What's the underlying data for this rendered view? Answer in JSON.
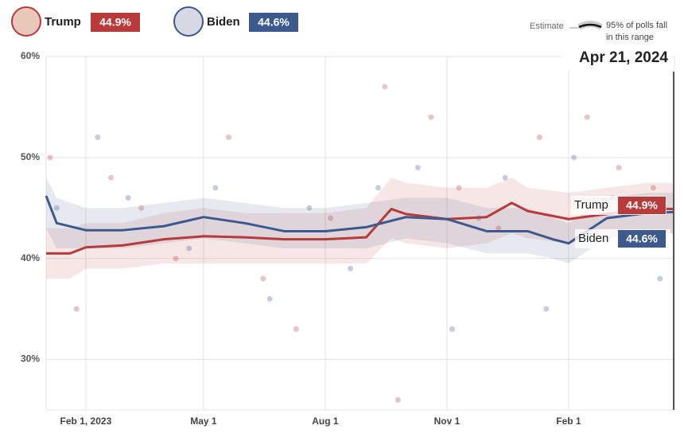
{
  "chart_data": {
    "type": "line",
    "date": "Apr 21, 2024",
    "legend": {
      "estimate": "Estimate",
      "range_label": [
        "95% of polls fall",
        "in this range"
      ]
    },
    "xlim": [
      "2023-01-02",
      "2024-04-21"
    ],
    "xticks": [
      {
        "value": "2023-02-01",
        "label": "Feb 1, 2023"
      },
      {
        "value": "2023-05-01",
        "label": "May 1"
      },
      {
        "value": "2023-08-01",
        "label": "Aug 1"
      },
      {
        "value": "2023-11-01",
        "label": "Nov 1"
      },
      {
        "value": "2024-02-01",
        "label": "Feb 1"
      }
    ],
    "ylim": [
      25,
      60
    ],
    "yticks": [
      {
        "value": 30,
        "label": "30%"
      },
      {
        "value": 40,
        "label": "40%"
      },
      {
        "value": 50,
        "label": "50%"
      },
      {
        "value": 60,
        "label": "60%"
      }
    ],
    "grid": true,
    "series": [
      {
        "name": "Trump",
        "color": "#b83a3b",
        "current": 44.9,
        "current_label": "44.9%",
        "x": [
          "2023-01-02",
          "2023-01-20",
          "2023-02-01",
          "2023-03-01",
          "2023-04-01",
          "2023-05-01",
          "2023-06-01",
          "2023-07-01",
          "2023-08-01",
          "2023-09-01",
          "2023-09-20",
          "2023-10-01",
          "2023-11-01",
          "2023-12-01",
          "2023-12-20",
          "2024-01-01",
          "2024-02-01",
          "2024-03-01",
          "2024-04-01",
          "2024-04-21"
        ],
        "values": [
          40.5,
          40.5,
          41.1,
          41.3,
          41.9,
          42.2,
          42.1,
          41.9,
          41.9,
          42.1,
          44.9,
          44.4,
          43.9,
          44.1,
          45.5,
          44.7,
          43.9,
          44.4,
          44.9,
          44.9
        ],
        "band_low": [
          38,
          38,
          39,
          39,
          39.5,
          39.5,
          39.5,
          39.5,
          39.5,
          39.5,
          42,
          41.5,
          41,
          41.5,
          42.5,
          42,
          41.5,
          42,
          42.5,
          42.5
        ],
        "band_high": [
          43,
          43,
          43.5,
          43.5,
          44.5,
          45,
          44.5,
          44.5,
          44.5,
          45,
          48,
          47.5,
          47,
          47,
          48,
          47,
          46.5,
          47,
          47.5,
          47.5
        ],
        "poll_dates": [
          "2023-01-05",
          "2023-01-25",
          "2023-02-20",
          "2023-03-15",
          "2023-04-10",
          "2023-05-20",
          "2023-06-15",
          "2023-07-10",
          "2023-08-05",
          "2023-09-15",
          "2023-09-25",
          "2023-10-20",
          "2023-11-10",
          "2023-12-10",
          "2024-01-10",
          "2024-02-15",
          "2024-03-10",
          "2024-04-05"
        ],
        "poll_values": [
          50,
          35,
          48,
          45,
          40,
          52,
          38,
          33,
          44,
          57,
          26,
          54,
          47,
          43,
          52,
          54,
          49,
          47
        ]
      },
      {
        "name": "Biden",
        "color": "#3d5a8e",
        "current": 44.6,
        "current_label": "44.6%",
        "x": [
          "2023-01-02",
          "2023-01-10",
          "2023-02-01",
          "2023-03-01",
          "2023-04-01",
          "2023-05-01",
          "2023-06-01",
          "2023-07-01",
          "2023-08-01",
          "2023-09-01",
          "2023-10-01",
          "2023-11-01",
          "2023-12-01",
          "2024-01-01",
          "2024-01-20",
          "2024-02-01",
          "2024-03-01",
          "2024-04-01",
          "2024-04-21"
        ],
        "values": [
          46.2,
          43.5,
          42.8,
          42.8,
          43.2,
          44.1,
          43.5,
          42.7,
          42.7,
          43.1,
          44.1,
          43.9,
          42.7,
          42.7,
          41.9,
          41.5,
          44.0,
          44.5,
          44.6
        ],
        "band_low": [
          43,
          41,
          41,
          41,
          41.5,
          42,
          41.5,
          41,
          41,
          41,
          42,
          41.5,
          40.5,
          40.5,
          40,
          39.5,
          42,
          42.5,
          42.5
        ],
        "band_high": [
          48,
          46,
          45,
          45,
          45.5,
          46,
          45.5,
          45,
          45,
          45.5,
          46,
          46,
          45,
          45,
          44,
          43.5,
          46,
          46.5,
          46.5
        ],
        "poll_dates": [
          "2023-01-10",
          "2023-02-10",
          "2023-03-05",
          "2023-04-20",
          "2023-05-10",
          "2023-06-20",
          "2023-07-20",
          "2023-08-20",
          "2023-09-10",
          "2023-10-10",
          "2023-11-05",
          "2023-11-25",
          "2023-12-15",
          "2024-01-15",
          "2024-02-05",
          "2024-03-05",
          "2024-04-10"
        ],
        "poll_values": [
          45,
          52,
          46,
          41,
          47,
          36,
          45,
          39,
          47,
          49,
          33,
          44,
          48,
          35,
          50,
          46,
          38
        ]
      }
    ]
  }
}
